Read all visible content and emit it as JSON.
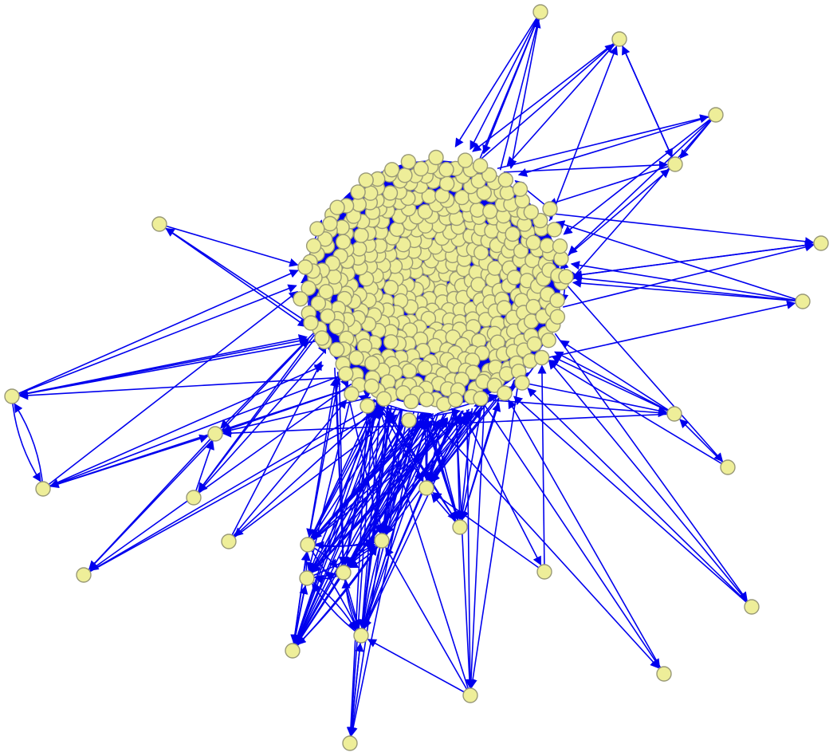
{
  "graph": {
    "type": "directed-network",
    "edge_color": "#0000ee",
    "node_fill": "#eeee99",
    "node_stroke": "#999977",
    "central_cluster_size": 430,
    "outer_node_count": 37
  }
}
